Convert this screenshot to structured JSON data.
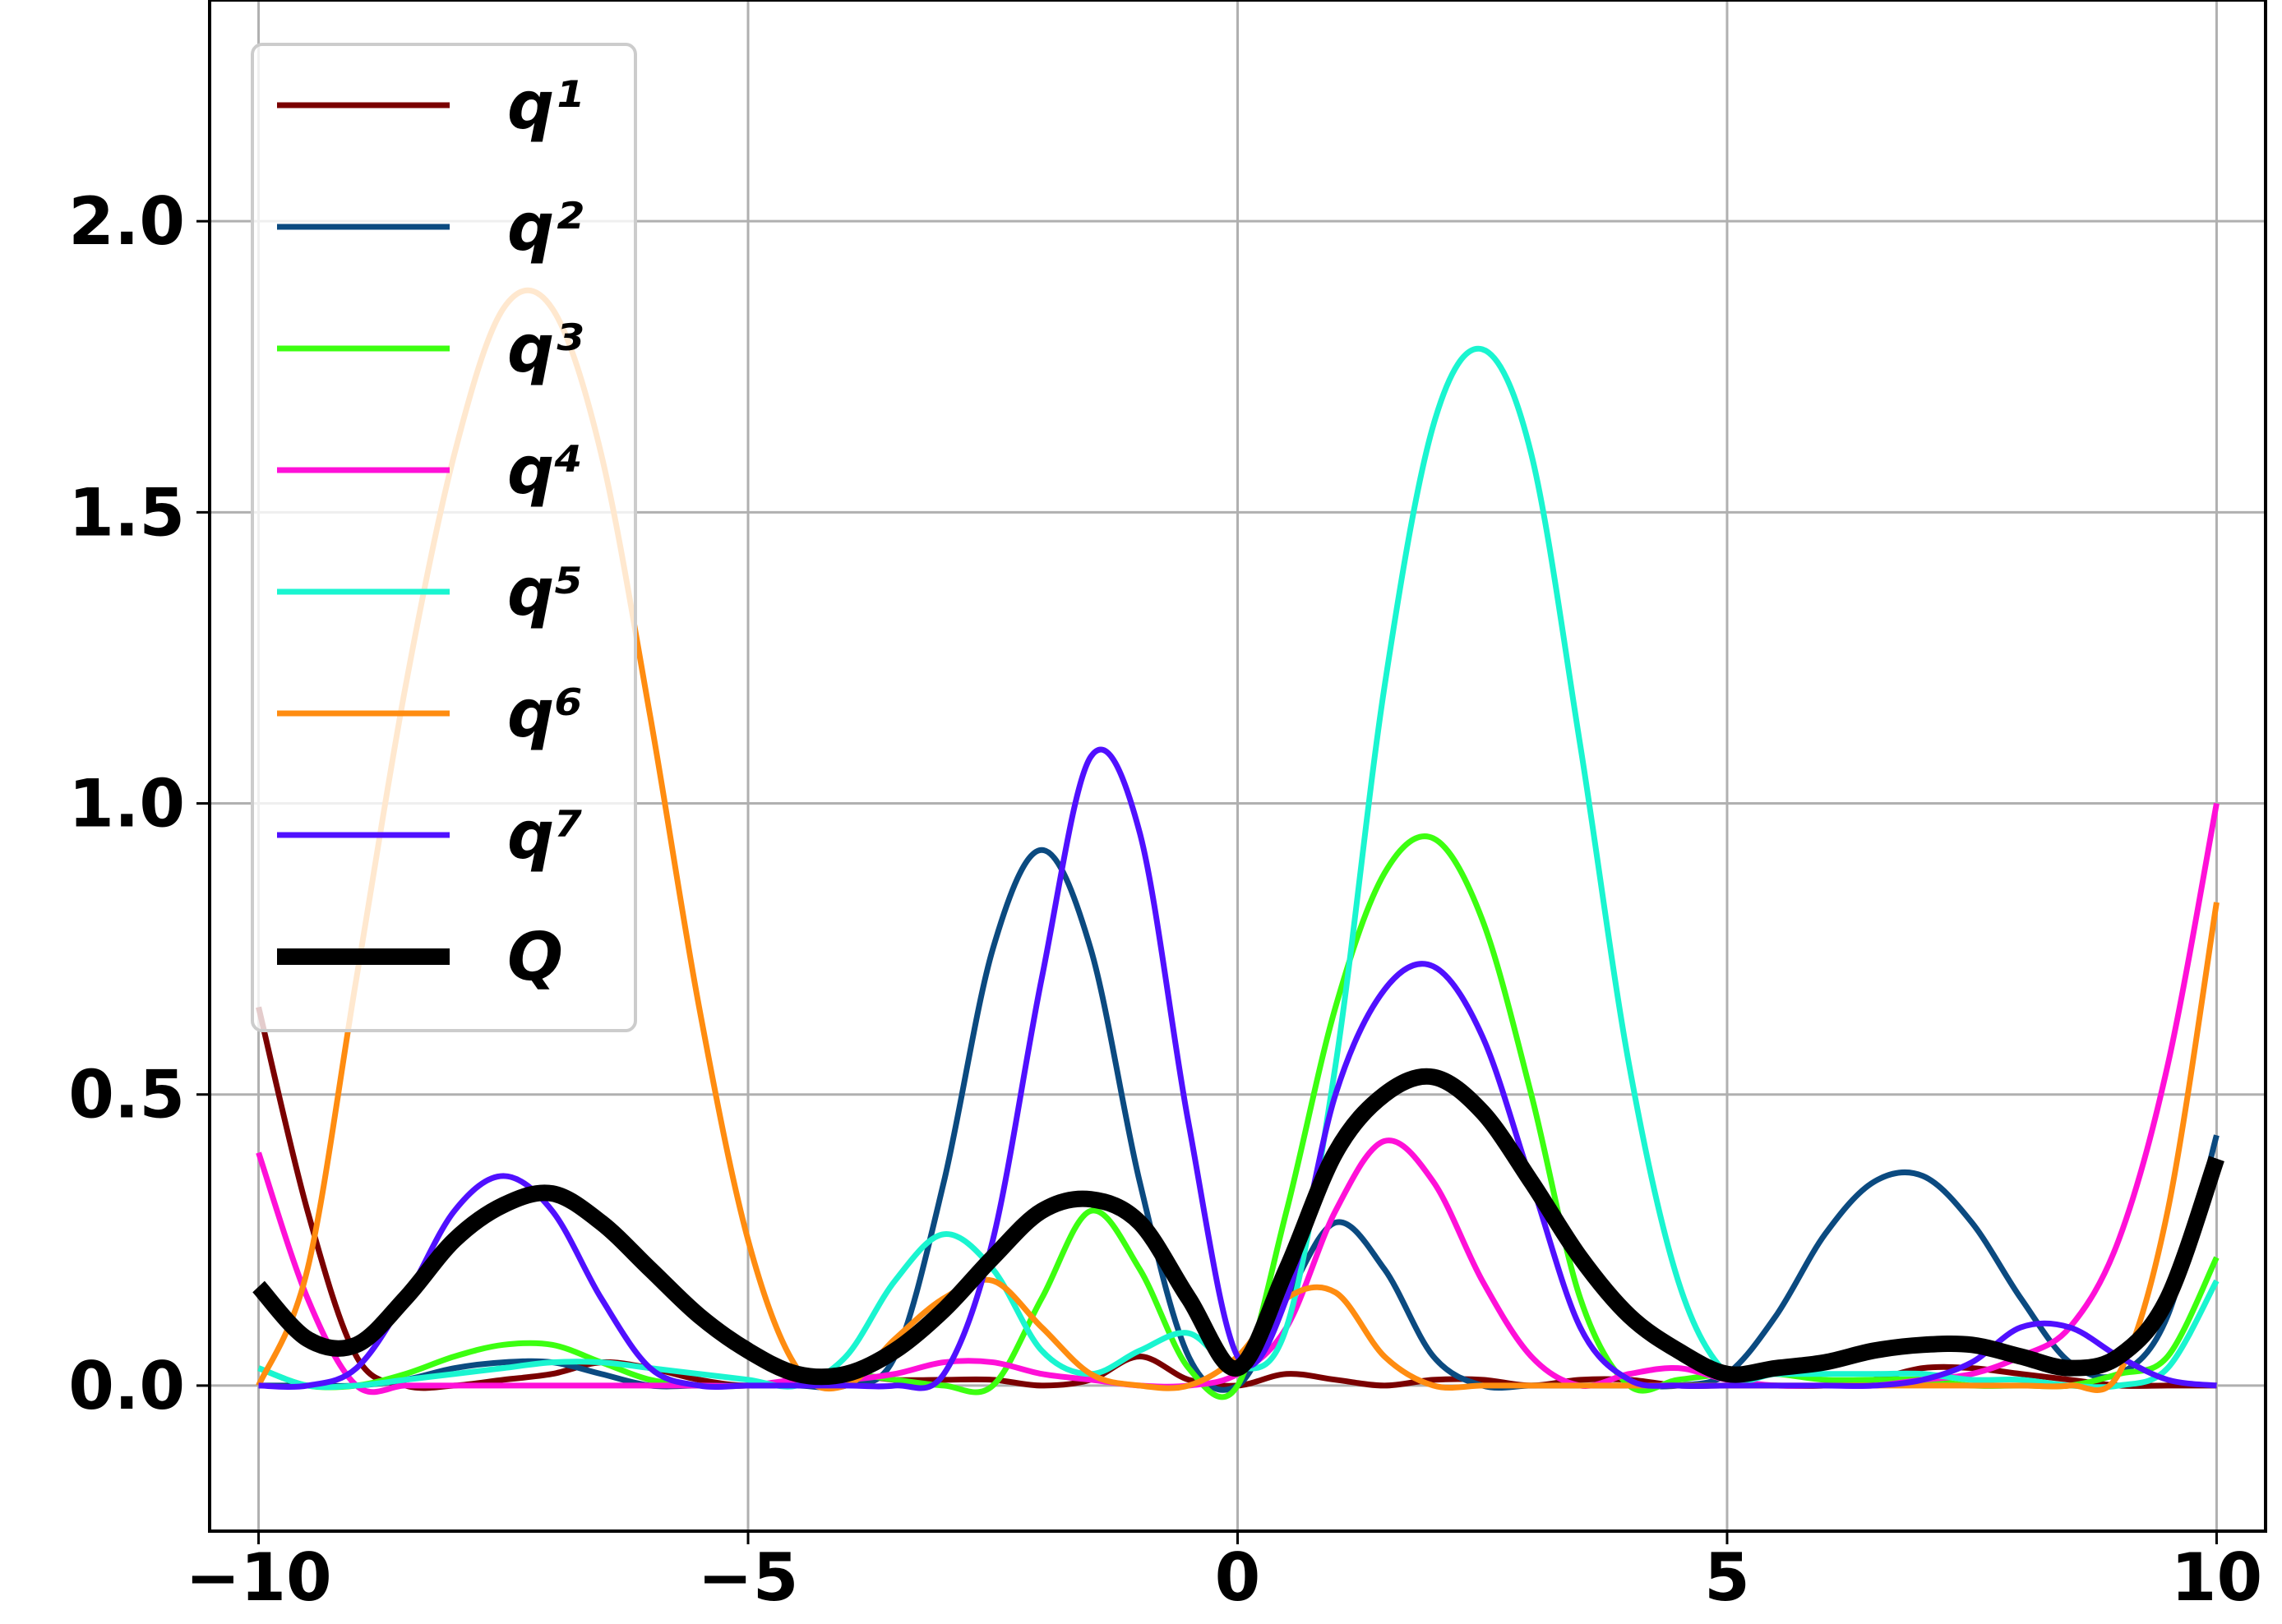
{
  "chart_data": {
    "type": "line",
    "x": [
      -10,
      -9.5,
      -9,
      -8.5,
      -8,
      -7.5,
      -7,
      -6.5,
      -6,
      -5.5,
      -5,
      -4.5,
      -4,
      -3.5,
      -3,
      -2.5,
      -2,
      -1.5,
      -1,
      -0.5,
      0,
      0.5,
      1,
      1.5,
      2,
      2.5,
      3,
      3.5,
      4,
      4.5,
      5,
      5.5,
      6,
      6.5,
      7,
      7.5,
      8,
      8.5,
      9,
      9.5,
      10
    ],
    "series": [
      {
        "name": "q¹",
        "color": "#7a0000",
        "values": [
          0.65,
          0.3,
          0.05,
          0.0,
          0.0,
          0.01,
          0.02,
          0.04,
          0.03,
          0.01,
          0.0,
          0.01,
          0.02,
          0.01,
          0.01,
          0.01,
          0.0,
          0.01,
          0.05,
          0.01,
          0.0,
          0.02,
          0.01,
          0.0,
          0.01,
          0.01,
          0.0,
          0.01,
          0.01,
          0.0,
          0.0,
          0.0,
          0.0,
          0.01,
          0.03,
          0.03,
          0.02,
          0.01,
          0.0,
          0.0,
          0.0
        ]
      },
      {
        "name": "q²",
        "color": "#0b4a80",
        "values": [
          0.0,
          0.0,
          0.0,
          0.01,
          0.03,
          0.04,
          0.04,
          0.02,
          0.0,
          0.0,
          0.0,
          0.0,
          0.0,
          0.05,
          0.35,
          0.75,
          0.92,
          0.75,
          0.35,
          0.05,
          0.0,
          0.15,
          0.28,
          0.2,
          0.05,
          0.0,
          0.0,
          0.0,
          0.0,
          0.0,
          0.02,
          0.12,
          0.26,
          0.35,
          0.36,
          0.28,
          0.15,
          0.04,
          0.02,
          0.12,
          0.43
        ]
      },
      {
        "name": "q³",
        "color": "#3cff10",
        "values": [
          0.03,
          0.0,
          0.0,
          0.02,
          0.05,
          0.07,
          0.07,
          0.04,
          0.01,
          0.0,
          0.0,
          0.01,
          0.02,
          0.01,
          0.0,
          0.0,
          0.15,
          0.3,
          0.2,
          0.03,
          0.0,
          0.3,
          0.65,
          0.88,
          0.94,
          0.8,
          0.5,
          0.15,
          0.0,
          0.01,
          0.02,
          0.02,
          0.01,
          0.01,
          0.01,
          0.0,
          0.0,
          0.0,
          0.02,
          0.05,
          0.22
        ]
      },
      {
        "name": "q⁴",
        "color": "#ff10d8",
        "values": [
          0.4,
          0.15,
          0.0,
          0.0,
          0.0,
          0.0,
          0.0,
          0.0,
          0.0,
          0.0,
          0.0,
          0.01,
          0.01,
          0.02,
          0.04,
          0.04,
          0.02,
          0.01,
          0.0,
          0.0,
          0.02,
          0.1,
          0.3,
          0.42,
          0.35,
          0.18,
          0.05,
          0.0,
          0.02,
          0.03,
          0.01,
          0.0,
          0.0,
          0.0,
          0.01,
          0.02,
          0.05,
          0.1,
          0.25,
          0.55,
          1.0
        ]
      },
      {
        "name": "q⁵",
        "color": "#1af5d0",
        "values": [
          0.03,
          0.0,
          0.0,
          0.01,
          0.02,
          0.03,
          0.04,
          0.04,
          0.03,
          0.02,
          0.01,
          0.0,
          0.05,
          0.18,
          0.26,
          0.2,
          0.06,
          0.02,
          0.06,
          0.09,
          0.03,
          0.1,
          0.55,
          1.2,
          1.65,
          1.78,
          1.6,
          1.1,
          0.55,
          0.18,
          0.02,
          0.02,
          0.02,
          0.02,
          0.02,
          0.01,
          0.01,
          0.0,
          0.0,
          0.03,
          0.18
        ]
      },
      {
        "name": "q⁶",
        "color": "#ff8c10",
        "values": [
          0.0,
          0.2,
          0.7,
          1.2,
          1.6,
          1.85,
          1.85,
          1.6,
          1.15,
          0.65,
          0.25,
          0.03,
          0.0,
          0.08,
          0.15,
          0.18,
          0.1,
          0.02,
          0.0,
          0.0,
          0.05,
          0.15,
          0.16,
          0.05,
          0.0,
          0.0,
          0.0,
          0.0,
          0.0,
          0.0,
          0.0,
          0.0,
          0.0,
          0.0,
          0.0,
          0.0,
          0.0,
          0.0,
          0.02,
          0.3,
          0.83
        ]
      },
      {
        "name": "q⁷",
        "color": "#5010ff",
        "values": [
          0.0,
          0.0,
          0.03,
          0.15,
          0.3,
          0.36,
          0.3,
          0.15,
          0.03,
          0.0,
          0.0,
          0.0,
          0.0,
          0.0,
          0.02,
          0.25,
          0.7,
          1.08,
          0.95,
          0.45,
          0.05,
          0.15,
          0.5,
          0.68,
          0.72,
          0.6,
          0.35,
          0.1,
          0.01,
          0.0,
          0.0,
          0.0,
          0.0,
          0.0,
          0.01,
          0.04,
          0.1,
          0.1,
          0.05,
          0.01,
          0.0
        ]
      },
      {
        "name": "Q",
        "color": "#000000",
        "width": "thick",
        "values": [
          0.17,
          0.08,
          0.07,
          0.15,
          0.25,
          0.31,
          0.33,
          0.28,
          0.2,
          0.12,
          0.06,
          0.02,
          0.02,
          0.06,
          0.13,
          0.22,
          0.3,
          0.32,
          0.28,
          0.15,
          0.03,
          0.2,
          0.4,
          0.5,
          0.53,
          0.47,
          0.35,
          0.22,
          0.12,
          0.06,
          0.02,
          0.03,
          0.04,
          0.06,
          0.07,
          0.07,
          0.05,
          0.03,
          0.05,
          0.15,
          0.39
        ]
      }
    ],
    "xlim": [
      -10.5,
      10.5
    ],
    "ylim": [
      -0.25,
      2.38
    ],
    "xticks": [
      {
        "value": -10,
        "label": "−10"
      },
      {
        "value": -5,
        "label": "−5"
      },
      0,
      5,
      10
    ],
    "yticks": [
      {
        "value": 0,
        "label": "0.0"
      },
      0.5,
      {
        "value": 1,
        "label": "1.0"
      },
      1.5,
      {
        "value": 2,
        "label": "2.0"
      }
    ],
    "grid": true,
    "legend": "upper-left"
  }
}
